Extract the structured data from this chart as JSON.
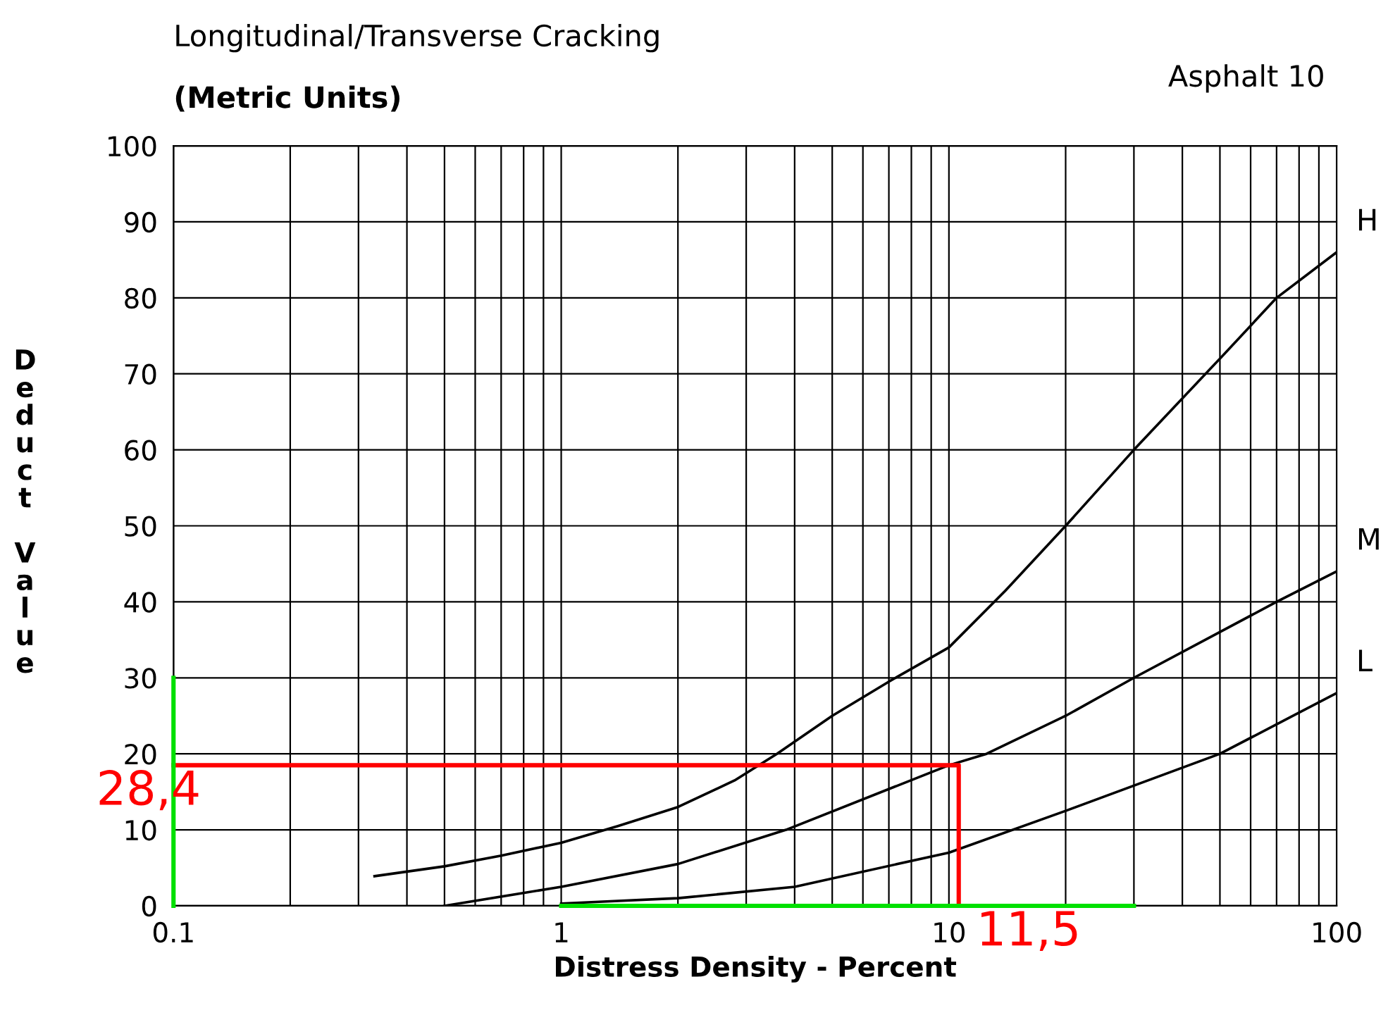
{
  "chart_data": {
    "type": "line",
    "title": "Longitudinal/Transverse Cracking",
    "subtitle": "(Metric Units)",
    "xlabel": "Distress Density - Percent",
    "ylabel": "Deduct Value",
    "log": "x",
    "grid": true,
    "legend": false,
    "marker": "none",
    "line_style": "solid",
    "xlim": [
      0.1,
      100
    ],
    "ylim": [
      0,
      100
    ],
    "xticks": [
      {
        "value": 0.1,
        "label": "0.1"
      },
      {
        "value": 0.2,
        "label": null
      },
      {
        "value": 0.3,
        "label": null
      },
      {
        "value": 0.4,
        "label": null
      },
      {
        "value": 0.5,
        "label": null
      },
      {
        "value": 0.6,
        "label": null
      },
      {
        "value": 0.7,
        "label": null
      },
      {
        "value": 0.8,
        "label": null
      },
      {
        "value": 0.9,
        "label": null
      },
      1,
      {
        "value": 2,
        "label": null
      },
      {
        "value": 3,
        "label": null
      },
      {
        "value": 4,
        "label": null
      },
      {
        "value": 5,
        "label": null
      },
      {
        "value": 6,
        "label": null
      },
      {
        "value": 7,
        "label": null
      },
      {
        "value": 8,
        "label": null
      },
      {
        "value": 9,
        "label": null
      },
      10,
      {
        "value": 20,
        "label": null
      },
      {
        "value": 30,
        "label": null
      },
      {
        "value": 40,
        "label": null
      },
      {
        "value": 50,
        "label": null
      },
      {
        "value": 60,
        "label": null
      },
      {
        "value": 70,
        "label": null
      },
      {
        "value": 80,
        "label": null
      },
      {
        "value": 90,
        "label": null
      },
      100
    ],
    "yticks": [
      0,
      10,
      20,
      30,
      40,
      50,
      60,
      70,
      80,
      90,
      100
    ],
    "annotations": [
      {
        "text": "Asphalt 10"
      },
      {
        "text": "28,4",
        "x": 0.1,
        "y": 18.5
      },
      {
        "text": "11,5",
        "x": 10.6,
        "y": 0
      }
    ],
    "series": [
      {
        "name": "H",
        "color": "#000000",
        "x": [
          0.33,
          0.5,
          0.7,
          1,
          1.4,
          2,
          2.8,
          3.6,
          5,
          7,
          10,
          14,
          20,
          30,
          50,
          70,
          100
        ],
        "values": [
          3.9,
          5.2,
          6.6,
          8.3,
          10.5,
          13,
          16.5,
          20,
          25,
          29.5,
          34,
          41.5,
          50,
          60,
          72,
          80,
          86
        ]
      },
      {
        "name": "M",
        "color": "#000000",
        "x": [
          0.5,
          1,
          2,
          3.8,
          10,
          12.5,
          20,
          30,
          70,
          100
        ],
        "values": [
          0,
          2.5,
          5.5,
          10,
          18.5,
          20,
          25,
          30,
          40,
          44
        ]
      },
      {
        "name": "L",
        "color": "#000000",
        "x": [
          1,
          2,
          4,
          10,
          20,
          50,
          100
        ],
        "values": [
          0.3,
          1,
          2.5,
          7,
          12.5,
          20,
          28
        ]
      },
      {
        "color": "#ff0000",
        "x": [
          0.1,
          10.6,
          10.6
        ],
        "values": [
          18.5,
          18.5,
          0
        ]
      },
      {
        "color": "#00e000",
        "x": [
          0.1,
          0.1
        ],
        "values": [
          0,
          30
        ]
      },
      {
        "color": "#00e000",
        "x": [
          1,
          30
        ],
        "values": [
          0,
          0
        ]
      }
    ]
  }
}
